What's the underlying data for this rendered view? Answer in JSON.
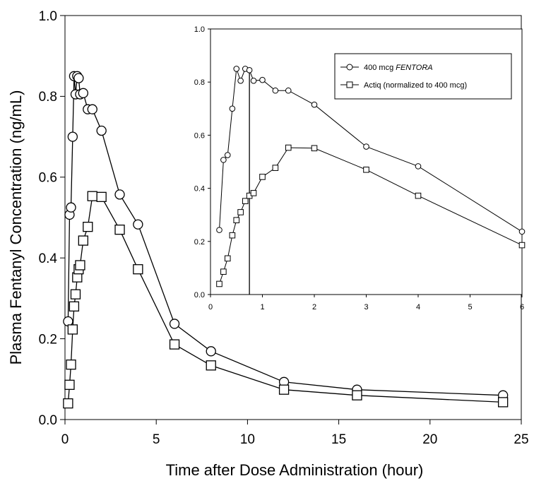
{
  "chart_data": [
    {
      "type": "line",
      "title": "",
      "xlabel": "Time after Dose Administration (hour)",
      "ylabel": "Plasma Fentanyl Concentration (ng/mL)",
      "xlim": [
        0,
        25
      ],
      "ylim": [
        0,
        1.0
      ],
      "x_ticks": [
        "0",
        "5",
        "10",
        "15",
        "20",
        "25"
      ],
      "y_ticks": [
        "0.0",
        "0.2",
        "0.4",
        "0.6",
        "0.8",
        "1.0"
      ],
      "grid": false,
      "series": [
        {
          "marker": "circle",
          "x": [
            0.17,
            0.25,
            0.33,
            0.42,
            0.5,
            0.58,
            0.67,
            0.75,
            0.83,
            1.0,
            1.25,
            1.5,
            2,
            3,
            4,
            6,
            8,
            12,
            16,
            24
          ],
          "y": [
            0.243,
            0.507,
            0.525,
            0.7,
            0.85,
            0.805,
            0.85,
            0.845,
            0.805,
            0.808,
            0.768,
            0.768,
            0.715,
            0.557,
            0.483,
            0.237,
            0.169,
            0.093,
            0.074,
            0.06
          ]
        },
        {
          "marker": "square",
          "x": [
            0.17,
            0.25,
            0.33,
            0.42,
            0.5,
            0.58,
            0.67,
            0.75,
            0.83,
            1.0,
            1.25,
            1.5,
            2,
            3,
            4,
            6,
            8,
            12,
            16,
            24
          ],
          "y": [
            0.04,
            0.086,
            0.136,
            0.223,
            0.28,
            0.31,
            0.352,
            0.372,
            0.382,
            0.443,
            0.477,
            0.553,
            0.551,
            0.47,
            0.372,
            0.186,
            0.134,
            0.074,
            0.06,
            0.043
          ]
        }
      ]
    },
    {
      "type": "line",
      "title": "",
      "xlabel": "",
      "ylabel": "",
      "xlim": [
        0,
        6
      ],
      "ylim": [
        0,
        1.0
      ],
      "x_ticks": [
        "0",
        "1",
        "2",
        "3",
        "4",
        "5",
        "6"
      ],
      "y_ticks": [
        "0.0",
        "0.2",
        "0.4",
        "0.6",
        "0.8",
        "1.0"
      ],
      "grid": false,
      "legend_position": "top-right",
      "reference_line_x": 0.75,
      "series": [
        {
          "name": "400 mcg ",
          "name_italic": "FENTORA",
          "marker": "circle",
          "x": [
            0.17,
            0.25,
            0.33,
            0.42,
            0.5,
            0.58,
            0.67,
            0.75,
            0.83,
            1.0,
            1.25,
            1.5,
            2,
            3,
            4,
            6
          ],
          "y": [
            0.243,
            0.507,
            0.525,
            0.7,
            0.85,
            0.805,
            0.85,
            0.845,
            0.805,
            0.808,
            0.768,
            0.768,
            0.715,
            0.557,
            0.483,
            0.237
          ]
        },
        {
          "name": "Actiq (normalized to 400 mcg)",
          "marker": "square",
          "x": [
            0.17,
            0.25,
            0.33,
            0.42,
            0.5,
            0.58,
            0.67,
            0.75,
            0.83,
            1.0,
            1.25,
            1.5,
            2,
            3,
            4,
            6
          ],
          "y": [
            0.04,
            0.086,
            0.136,
            0.223,
            0.28,
            0.31,
            0.352,
            0.372,
            0.382,
            0.443,
            0.477,
            0.553,
            0.551,
            0.47,
            0.372,
            0.186
          ]
        }
      ]
    }
  ]
}
